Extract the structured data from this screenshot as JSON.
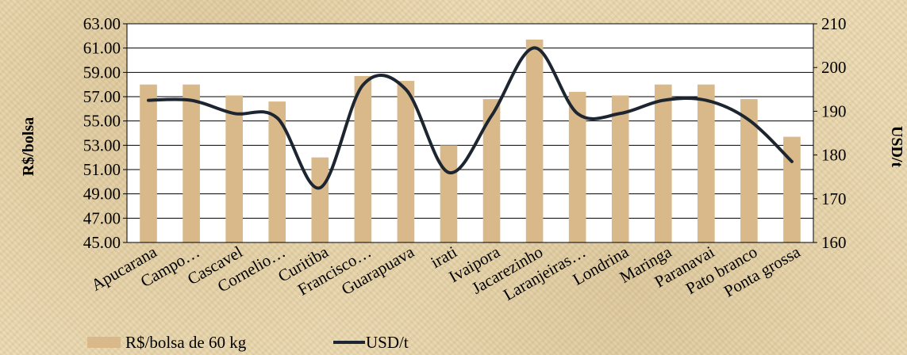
{
  "chart_data": {
    "type": "bar",
    "categories": [
      "Apucarana",
      "Campo…",
      "Cascavel",
      "Cornelio…",
      "Curitiba",
      "Francisco…",
      "Guarapuava",
      "irati",
      "Ivaipora",
      "Jacarezinho",
      "Laranjeiras…",
      "Londrina",
      "Maringa",
      "Paranavai",
      "Pato branco",
      "Ponta grossa"
    ],
    "series": [
      {
        "name": "R$/bolsa de 60 kg",
        "type": "bar",
        "axis": "left",
        "color": "#d9b88a",
        "values": [
          58.0,
          58.0,
          57.1,
          56.6,
          52.0,
          58.7,
          58.3,
          53.0,
          56.8,
          61.7,
          57.4,
          57.1,
          58.0,
          58.0,
          56.8,
          53.7
        ]
      },
      {
        "name": "USD/t",
        "type": "line",
        "axis": "right",
        "color": "#1c2530",
        "values": [
          192.5,
          192.5,
          189.5,
          188.5,
          172.5,
          196.0,
          195.0,
          176.0,
          189.0,
          204.5,
          189.5,
          189.5,
          192.5,
          192.5,
          188.0,
          178.5
        ]
      }
    ],
    "ylabel": "R$/bolsa",
    "y2label": "USD/t",
    "ylim": [
      45.0,
      63.0
    ],
    "y2lim": [
      160,
      210
    ],
    "yticks": [
      "45.00",
      "47.00",
      "49.00",
      "51.00",
      "53.00",
      "55.00",
      "57.00",
      "59.00",
      "61.00",
      "63.00"
    ],
    "y2ticks": [
      "160",
      "170",
      "180",
      "190",
      "200",
      "210"
    ],
    "grid": true,
    "legend_position": "bottom-left"
  }
}
